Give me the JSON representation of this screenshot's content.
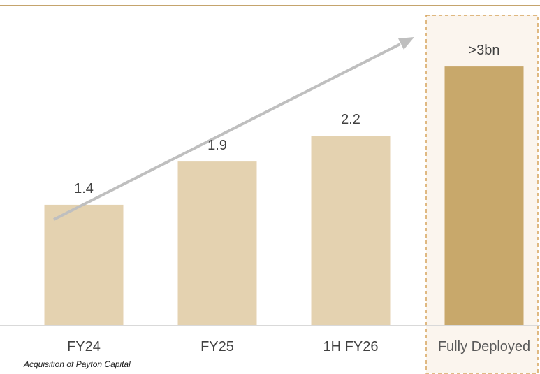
{
  "colors": {
    "top_rule": "#c5a46d",
    "bar": "#e4d2b0",
    "bar_highlight": "#c8a86b",
    "highlight_box_fill": "#fbf5ee",
    "highlight_box_border": "#d6a35c",
    "arrow": "#bfbfbf",
    "axis": "#d9d9d9",
    "text": "#404040"
  },
  "chart_data": {
    "type": "bar",
    "categories": [
      "FY24",
      "FY25",
      "1H FY26",
      "Fully Deployed"
    ],
    "values": [
      1.4,
      1.9,
      2.2,
      3.0
    ],
    "data_labels": [
      "1.4",
      "1.9",
      "2.2",
      ">3bn"
    ],
    "highlight_index": 3,
    "title": "",
    "xlabel": "",
    "ylabel": "",
    "ylim": [
      0,
      3.3
    ],
    "grid": false,
    "legend": "none",
    "annotations": {
      "growth_arrow": true,
      "highlight_box_category": "Fully Deployed"
    }
  },
  "footnote": "Acquisition of Payton Capital"
}
